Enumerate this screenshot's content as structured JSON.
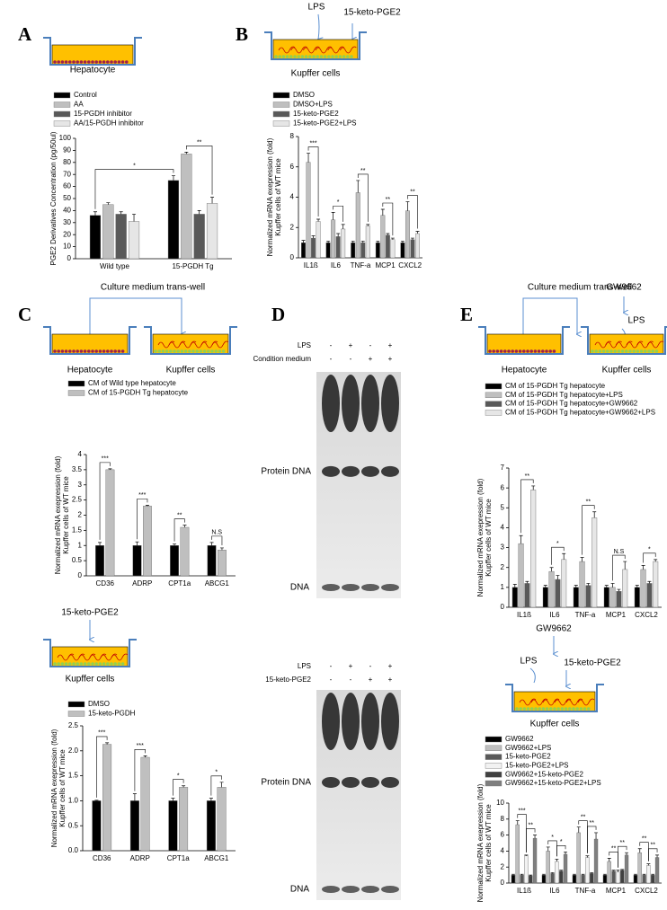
{
  "figure": {
    "panels": [
      "A",
      "B",
      "C",
      "D",
      "E"
    ],
    "labels": [
      "Hepatocyte",
      "LPS",
      "15-keto-PGE2",
      "Kupffer cells",
      "Culture medium trans-well",
      "Hepatocyte",
      "Kupffer cells",
      "15-keto-PGE2",
      "Kupffer cells",
      "Culture medium trans-well",
      "GW9662",
      "LPS",
      "Hepatocyte",
      "Kupffer cells",
      "GW9662",
      "LPS",
      "15-keto-PGE2",
      "Kupffer cells"
    ],
    "gels": [
      {
        "rows": [
          {
            "name": "LPS",
            "signs": [
              "-",
              "+",
              "-",
              "+"
            ]
          },
          {
            "name": "Condition medium",
            "signs": [
              "-",
              "-",
              "+",
              "+"
            ]
          }
        ],
        "bands": [
          "Protein DNA",
          "DNA"
        ]
      },
      {
        "rows": [
          {
            "name": "LPS",
            "signs": [
              "-",
              "+",
              "-",
              "+"
            ]
          },
          {
            "name": "15-keto-PGE2",
            "signs": [
              "-",
              "-",
              "+",
              "+"
            ]
          }
        ],
        "bands": [
          "Protein DNA",
          "DNA"
        ]
      }
    ]
  },
  "chart_data": [
    {
      "type": "bar",
      "ylabel": [
        "PGE2 Derivatives Concentration (pg/50ul)"
      ],
      "categories": [
        "Wild type",
        "15-PGDH Tg"
      ],
      "series": [
        {
          "name": "Control",
          "color": "#000000",
          "values": [
            36,
            65
          ],
          "errors": [
            3,
            4
          ]
        },
        {
          "name": "AA",
          "color": "#bfbfbf",
          "values": [
            45,
            87
          ],
          "errors": [
            1.5,
            1.5
          ]
        },
        {
          "name": "15-PGDH inhibitor",
          "color": "#595959",
          "values": [
            37,
            37
          ],
          "errors": [
            2,
            3
          ]
        },
        {
          "name": "AA/15-PGDH inhibitor",
          "color": "#e6e6e6",
          "values": [
            31,
            46
          ],
          "errors": [
            6,
            5
          ]
        }
      ],
      "ylim": [
        0,
        100
      ],
      "yticks": [
        0,
        10,
        20,
        30,
        40,
        50,
        60,
        70,
        80,
        90,
        100
      ],
      "annotations": [
        "*",
        "**"
      ]
    },
    {
      "type": "bar",
      "ylabel": [
        "Normalized mRNA exepression (fold)",
        "Kupffer cells of WT mice"
      ],
      "categories": [
        "IL1ß",
        "IL6",
        "TNF-a",
        "MCP1",
        "CXCL2"
      ],
      "series": [
        {
          "name": "DMSO",
          "color": "#000000",
          "values": [
            1,
            1,
            1,
            1,
            1
          ],
          "errors": [
            0.15,
            0.1,
            0.1,
            0.1,
            0.1
          ]
        },
        {
          "name": "DMSO+LPS",
          "color": "#bfbfbf",
          "values": [
            6.3,
            2.5,
            4.3,
            2.8,
            3.1
          ],
          "errors": [
            0.6,
            0.5,
            0.8,
            0.4,
            0.6
          ]
        },
        {
          "name": "15-keto-PGE2",
          "color": "#595959",
          "values": [
            1.3,
            1.4,
            1.0,
            1.5,
            1.2
          ],
          "errors": [
            0.15,
            0.2,
            0.1,
            0.1,
            0.1
          ]
        },
        {
          "name": "15-keto-PGE2+LPS",
          "color": "#e6e6e6",
          "values": [
            2.4,
            1.9,
            2.1,
            1.2,
            1.6
          ],
          "errors": [
            0.15,
            0.3,
            0.1,
            0.1,
            0.15
          ]
        }
      ],
      "ylim": [
        0,
        8
      ],
      "yticks": [
        0,
        2,
        4,
        6,
        8
      ],
      "annotations": [
        "***",
        "*",
        "**",
        "**",
        "**"
      ]
    },
    {
      "type": "bar",
      "ylabel": [
        "Normalized mRNA exepression (fold)",
        "Kupffer cells of WT mice"
      ],
      "categories": [
        "CD36",
        "ADRP",
        "CPT1a",
        "ABCG1"
      ],
      "series": [
        {
          "name": "CM of Wild type hepatocyte",
          "color": "#000000",
          "values": [
            1,
            1,
            1,
            1
          ],
          "errors": [
            0.1,
            0.12,
            0.05,
            0.1
          ]
        },
        {
          "name": "CM of 15-PGDH Tg hepatocyte",
          "color": "#bfbfbf",
          "values": [
            3.5,
            2.3,
            1.6,
            0.85
          ],
          "errors": [
            0.03,
            0.03,
            0.07,
            0.07
          ]
        }
      ],
      "ylim": [
        0,
        4
      ],
      "yticks": [
        0,
        0.5,
        1,
        1.5,
        2,
        2.5,
        3,
        3.5,
        4
      ],
      "annotations": [
        "***",
        "***",
        "**",
        "N.S"
      ]
    },
    {
      "type": "bar",
      "ylabel": [
        "Normalized mRNA exepression (fold)",
        "Kupffer cells of WT mice"
      ],
      "categories": [
        "CD36",
        "ADRP",
        "CPT1a",
        "ABCG1"
      ],
      "series": [
        {
          "name": "DMSO",
          "color": "#000000",
          "values": [
            1,
            1,
            1,
            1
          ],
          "errors": [
            0.01,
            0.14,
            0.05,
            0.05
          ]
        },
        {
          "name": "15-keto-PGDH",
          "color": "#bfbfbf",
          "values": [
            2.13,
            1.87,
            1.27,
            1.27
          ],
          "errors": [
            0.03,
            0.03,
            0.03,
            0.1
          ]
        }
      ],
      "ylim": [
        0,
        2.5
      ],
      "yticks": [
        {
          "value": 0,
          "label": "0.0"
        },
        {
          "value": 0.5,
          "label": "0.5"
        },
        {
          "value": 1,
          "label": "1.0"
        },
        {
          "value": 1.5,
          "label": "1.5"
        },
        {
          "value": 2,
          "label": "2.0"
        },
        {
          "value": 2.5,
          "label": "2.5"
        }
      ],
      "annotations": [
        "***",
        "***",
        "*",
        "*"
      ]
    },
    {
      "type": "bar",
      "ylabel": [
        "Normalized mRNA exepression (fold)",
        "Kupffer cells of WT mice"
      ],
      "categories": [
        "IL1ß",
        "IL6",
        "TNF-a",
        "MCP1",
        "CXCL2"
      ],
      "series": [
        {
          "name": "CM of 15-PGDH Tg hepatocyte",
          "color": "#000000",
          "values": [
            1,
            1,
            1,
            1,
            1
          ],
          "errors": [
            0.15,
            0.1,
            0.1,
            0.1,
            0.1
          ]
        },
        {
          "name": "CM of 15-PGDH Tg hepatocyte+LPS",
          "color": "#bfbfbf",
          "values": [
            3.2,
            1.8,
            2.3,
            1.0,
            1.9
          ],
          "errors": [
            0.4,
            0.2,
            0.2,
            0.2,
            0.2
          ]
        },
        {
          "name": "CM of 15-PGDH Tg hepatocyte+GW9662",
          "color": "#595959",
          "values": [
            1.2,
            1.4,
            1.1,
            0.8,
            1.2
          ],
          "errors": [
            0.1,
            0.2,
            0.1,
            0.1,
            0.1
          ]
        },
        {
          "name": "CM of 15-PGDH Tg hepatocyte+GW9662+LPS",
          "color": "#e6e6e6",
          "values": [
            5.9,
            2.4,
            4.5,
            1.9,
            2.3
          ],
          "errors": [
            0.2,
            0.3,
            0.3,
            0.4,
            0.1
          ]
        }
      ],
      "ylim": [
        0,
        7
      ],
      "yticks": [
        0,
        1,
        2,
        3,
        4,
        5,
        6,
        7
      ],
      "annotations": [
        "**",
        "*",
        "**",
        "N.S",
        "*"
      ]
    },
    {
      "type": "bar",
      "ylabel": [
        "Normalized mRNA exepression (fold)",
        "Kupffer cells of WT mice"
      ],
      "categories": [
        "IL1ß",
        "IL6",
        "TNF-a",
        "MCP1",
        "CXCL2"
      ],
      "series": [
        {
          "name": "GW9662",
          "color": "#000000",
          "values": [
            1,
            1,
            1,
            1,
            1
          ],
          "errors": [
            0.1,
            0.1,
            0.1,
            0.1,
            0.1
          ]
        },
        {
          "name": "GW9662+LPS",
          "color": "#bfbfbf",
          "values": [
            7.3,
            4.0,
            6.3,
            2.7,
            3.8
          ],
          "errors": [
            0.5,
            0.5,
            0.7,
            0.4,
            0.5
          ]
        },
        {
          "name": "15-keto-PGE2",
          "color": "#595959",
          "values": [
            1.0,
            1.2,
            1.0,
            1.5,
            1.0
          ],
          "errors": [
            0.1,
            0.1,
            0.1,
            0.1,
            0.1
          ]
        },
        {
          "name": "15-keto-PGE2+LPS",
          "color": "#f2f2f2",
          "values": [
            3.4,
            2.7,
            3.2,
            1.4,
            2.2
          ],
          "errors": [
            0.1,
            0.3,
            0.2,
            0.2,
            0.2
          ]
        },
        {
          "name": "GW9662+15-keto-PGE2",
          "color": "#404040",
          "values": [
            0.9,
            1.5,
            1.2,
            1.6,
            1.0
          ],
          "errors": [
            0.1,
            0.1,
            0.1,
            0.1,
            0.1
          ]
        },
        {
          "name": "GW9662+15-keto-PGE2+LPS",
          "color": "#7f7f7f",
          "values": [
            5.6,
            3.6,
            5.5,
            3.5,
            3.2
          ],
          "errors": [
            0.4,
            0.3,
            0.8,
            0.3,
            0.3
          ]
        }
      ],
      "ylim": [
        0,
        10
      ],
      "yticks": [
        0,
        2,
        4,
        6,
        8,
        10
      ],
      "annotations": [
        "***",
        "**",
        "*",
        "*",
        "**",
        "**",
        "**",
        "**",
        "**",
        "**"
      ]
    }
  ]
}
